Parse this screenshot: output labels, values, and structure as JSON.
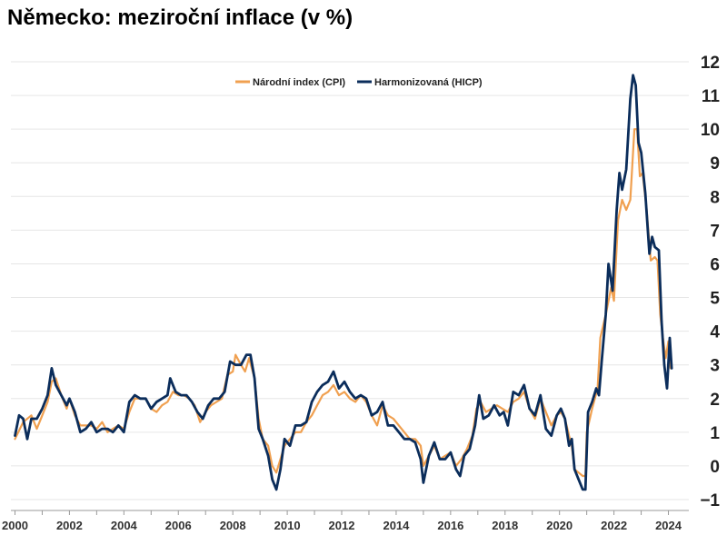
{
  "chart_data": {
    "type": "line",
    "title": "Německo: meziroční inflace (v %)",
    "xlabel": "",
    "ylabel": "",
    "xlim": [
      1999.85,
      2024.75
    ],
    "ylim": [
      -1,
      12
    ],
    "yticks": [
      -1,
      0,
      1,
      2,
      3,
      4,
      5,
      6,
      7,
      8,
      9,
      10,
      11,
      12
    ],
    "xticks": [
      "2000",
      "2002",
      "2004",
      "2006",
      "2008",
      "2010",
      "2012",
      "2014",
      "2016",
      "2018",
      "2020",
      "2022",
      "2024"
    ],
    "grid": true,
    "legend_position": "top-center",
    "colors": {
      "cpi": "#f0a050",
      "hicp": "#0b2d5b"
    },
    "series": [
      {
        "name": "Národní index (CPI)",
        "points": [
          [
            2000.0,
            0.8
          ],
          [
            2000.3,
            1.3
          ],
          [
            2000.6,
            1.5
          ],
          [
            2000.8,
            1.1
          ],
          [
            2001.0,
            1.5
          ],
          [
            2001.2,
            1.9
          ],
          [
            2001.35,
            2.5
          ],
          [
            2001.5,
            2.6
          ],
          [
            2001.7,
            2.1
          ],
          [
            2001.9,
            1.7
          ],
          [
            2002.0,
            2.0
          ],
          [
            2002.2,
            1.5
          ],
          [
            2002.4,
            1.2
          ],
          [
            2002.6,
            1.2
          ],
          [
            2002.8,
            1.2
          ],
          [
            2003.0,
            1.1
          ],
          [
            2003.2,
            1.3
          ],
          [
            2003.4,
            1.0
          ],
          [
            2003.6,
            1.1
          ],
          [
            2003.8,
            1.2
          ],
          [
            2004.0,
            1.1
          ],
          [
            2004.2,
            1.6
          ],
          [
            2004.4,
            2.0
          ],
          [
            2004.6,
            2.0
          ],
          [
            2004.8,
            2.0
          ],
          [
            2005.0,
            1.7
          ],
          [
            2005.2,
            1.6
          ],
          [
            2005.4,
            1.8
          ],
          [
            2005.6,
            1.9
          ],
          [
            2005.8,
            2.2
          ],
          [
            2006.0,
            2.1
          ],
          [
            2006.2,
            2.1
          ],
          [
            2006.4,
            2.0
          ],
          [
            2006.6,
            1.8
          ],
          [
            2006.8,
            1.3
          ],
          [
            2007.0,
            1.6
          ],
          [
            2007.2,
            1.8
          ],
          [
            2007.4,
            1.9
          ],
          [
            2007.6,
            2.0
          ],
          [
            2007.8,
            2.7
          ],
          [
            2008.0,
            2.8
          ],
          [
            2008.1,
            3.3
          ],
          [
            2008.3,
            3.0
          ],
          [
            2008.45,
            2.8
          ],
          [
            2008.6,
            3.2
          ],
          [
            2008.8,
            2.6
          ],
          [
            2008.95,
            1.4
          ],
          [
            2009.1,
            0.8
          ],
          [
            2009.3,
            0.6
          ],
          [
            2009.45,
            0.0
          ],
          [
            2009.6,
            -0.2
          ],
          [
            2009.75,
            0.2
          ],
          [
            2009.9,
            0.6
          ],
          [
            2010.1,
            0.8
          ],
          [
            2010.3,
            1.0
          ],
          [
            2010.5,
            1.0
          ],
          [
            2010.7,
            1.3
          ],
          [
            2010.9,
            1.5
          ],
          [
            2011.1,
            1.8
          ],
          [
            2011.3,
            2.1
          ],
          [
            2011.5,
            2.2
          ],
          [
            2011.7,
            2.4
          ],
          [
            2011.9,
            2.1
          ],
          [
            2012.1,
            2.2
          ],
          [
            2012.3,
            2.0
          ],
          [
            2012.5,
            1.9
          ],
          [
            2012.7,
            2.1
          ],
          [
            2012.9,
            1.9
          ],
          [
            2013.1,
            1.5
          ],
          [
            2013.3,
            1.2
          ],
          [
            2013.5,
            1.8
          ],
          [
            2013.7,
            1.5
          ],
          [
            2013.9,
            1.4
          ],
          [
            2014.1,
            1.2
          ],
          [
            2014.3,
            1.0
          ],
          [
            2014.5,
            0.8
          ],
          [
            2014.7,
            0.8
          ],
          [
            2014.9,
            0.6
          ],
          [
            2015.0,
            0.0
          ],
          [
            2015.2,
            0.3
          ],
          [
            2015.4,
            0.6
          ],
          [
            2015.6,
            0.2
          ],
          [
            2015.8,
            0.3
          ],
          [
            2016.0,
            0.4
          ],
          [
            2016.2,
            0.0
          ],
          [
            2016.4,
            0.2
          ],
          [
            2016.6,
            0.5
          ],
          [
            2016.8,
            0.9
          ],
          [
            2016.95,
            1.7
          ],
          [
            2017.1,
            1.9
          ],
          [
            2017.3,
            1.6
          ],
          [
            2017.5,
            1.7
          ],
          [
            2017.7,
            1.8
          ],
          [
            2017.9,
            1.7
          ],
          [
            2018.1,
            1.6
          ],
          [
            2018.3,
            1.9
          ],
          [
            2018.5,
            2.0
          ],
          [
            2018.7,
            2.2
          ],
          [
            2018.9,
            1.7
          ],
          [
            2019.1,
            1.4
          ],
          [
            2019.3,
            2.0
          ],
          [
            2019.5,
            1.6
          ],
          [
            2019.7,
            1.2
          ],
          [
            2019.9,
            1.5
          ],
          [
            2020.05,
            1.6
          ],
          [
            2020.2,
            1.4
          ],
          [
            2020.35,
            0.9
          ],
          [
            2020.45,
            0.6
          ],
          [
            2020.55,
            -0.1
          ],
          [
            2020.7,
            -0.2
          ],
          [
            2020.85,
            -0.3
          ],
          [
            2020.95,
            -0.3
          ],
          [
            2021.0,
            1.0
          ],
          [
            2021.2,
            1.7
          ],
          [
            2021.4,
            2.3
          ],
          [
            2021.5,
            3.8
          ],
          [
            2021.7,
            4.5
          ],
          [
            2021.9,
            5.3
          ],
          [
            2022.0,
            4.9
          ],
          [
            2022.15,
            7.3
          ],
          [
            2022.3,
            7.9
          ],
          [
            2022.45,
            7.6
          ],
          [
            2022.6,
            7.9
          ],
          [
            2022.75,
            10.0
          ],
          [
            2022.85,
            10.0
          ],
          [
            2022.95,
            8.6
          ],
          [
            2023.05,
            8.7
          ],
          [
            2023.2,
            7.6
          ],
          [
            2023.35,
            6.1
          ],
          [
            2023.5,
            6.2
          ],
          [
            2023.6,
            6.1
          ],
          [
            2023.7,
            4.5
          ],
          [
            2023.8,
            3.8
          ],
          [
            2023.9,
            3.2
          ],
          [
            2024.0,
            3.7
          ],
          [
            2024.08,
            2.9
          ]
        ]
      },
      {
        "name": "Harmonizovaná (HICP)",
        "points": [
          [
            2000.0,
            0.9
          ],
          [
            2000.15,
            1.5
          ],
          [
            2000.3,
            1.4
          ],
          [
            2000.45,
            0.8
          ],
          [
            2000.6,
            1.4
          ],
          [
            2000.8,
            1.4
          ],
          [
            2001.0,
            1.7
          ],
          [
            2001.2,
            2.1
          ],
          [
            2001.35,
            2.9
          ],
          [
            2001.5,
            2.4
          ],
          [
            2001.7,
            2.1
          ],
          [
            2001.9,
            1.8
          ],
          [
            2002.0,
            2.0
          ],
          [
            2002.2,
            1.6
          ],
          [
            2002.4,
            1.0
          ],
          [
            2002.6,
            1.1
          ],
          [
            2002.8,
            1.3
          ],
          [
            2003.0,
            1.0
          ],
          [
            2003.2,
            1.1
          ],
          [
            2003.4,
            1.1
          ],
          [
            2003.6,
            1.0
          ],
          [
            2003.8,
            1.2
          ],
          [
            2004.0,
            1.0
          ],
          [
            2004.2,
            1.9
          ],
          [
            2004.4,
            2.1
          ],
          [
            2004.6,
            2.0
          ],
          [
            2004.8,
            2.0
          ],
          [
            2005.0,
            1.7
          ],
          [
            2005.2,
            1.9
          ],
          [
            2005.4,
            2.0
          ],
          [
            2005.6,
            2.1
          ],
          [
            2005.7,
            2.6
          ],
          [
            2005.9,
            2.2
          ],
          [
            2006.1,
            2.1
          ],
          [
            2006.3,
            2.1
          ],
          [
            2006.5,
            1.9
          ],
          [
            2006.7,
            1.6
          ],
          [
            2006.9,
            1.4
          ],
          [
            2007.1,
            1.8
          ],
          [
            2007.3,
            2.0
          ],
          [
            2007.5,
            2.0
          ],
          [
            2007.7,
            2.2
          ],
          [
            2007.9,
            3.1
          ],
          [
            2008.1,
            3.0
          ],
          [
            2008.3,
            3.0
          ],
          [
            2008.5,
            3.3
          ],
          [
            2008.65,
            3.3
          ],
          [
            2008.8,
            2.6
          ],
          [
            2008.95,
            1.1
          ],
          [
            2009.1,
            0.8
          ],
          [
            2009.3,
            0.3
          ],
          [
            2009.45,
            -0.4
          ],
          [
            2009.6,
            -0.7
          ],
          [
            2009.75,
            -0.1
          ],
          [
            2009.9,
            0.8
          ],
          [
            2010.1,
            0.6
          ],
          [
            2010.3,
            1.2
          ],
          [
            2010.5,
            1.2
          ],
          [
            2010.7,
            1.3
          ],
          [
            2010.9,
            1.9
          ],
          [
            2011.1,
            2.2
          ],
          [
            2011.3,
            2.4
          ],
          [
            2011.5,
            2.5
          ],
          [
            2011.7,
            2.8
          ],
          [
            2011.9,
            2.3
          ],
          [
            2012.1,
            2.5
          ],
          [
            2012.3,
            2.2
          ],
          [
            2012.5,
            2.0
          ],
          [
            2012.7,
            2.1
          ],
          [
            2012.9,
            2.0
          ],
          [
            2013.1,
            1.5
          ],
          [
            2013.3,
            1.6
          ],
          [
            2013.5,
            1.9
          ],
          [
            2013.7,
            1.2
          ],
          [
            2013.9,
            1.2
          ],
          [
            2014.1,
            1.0
          ],
          [
            2014.3,
            0.8
          ],
          [
            2014.5,
            0.8
          ],
          [
            2014.7,
            0.7
          ],
          [
            2014.9,
            0.2
          ],
          [
            2015.0,
            -0.5
          ],
          [
            2015.2,
            0.3
          ],
          [
            2015.4,
            0.7
          ],
          [
            2015.6,
            0.2
          ],
          [
            2015.8,
            0.2
          ],
          [
            2016.0,
            0.4
          ],
          [
            2016.2,
            -0.1
          ],
          [
            2016.35,
            -0.3
          ],
          [
            2016.5,
            0.3
          ],
          [
            2016.7,
            0.5
          ],
          [
            2016.9,
            1.2
          ],
          [
            2017.05,
            2.1
          ],
          [
            2017.2,
            1.4
          ],
          [
            2017.4,
            1.5
          ],
          [
            2017.6,
            1.8
          ],
          [
            2017.8,
            1.5
          ],
          [
            2017.95,
            1.6
          ],
          [
            2018.1,
            1.2
          ],
          [
            2018.3,
            2.2
          ],
          [
            2018.5,
            2.1
          ],
          [
            2018.7,
            2.4
          ],
          [
            2018.9,
            1.7
          ],
          [
            2019.1,
            1.5
          ],
          [
            2019.3,
            2.1
          ],
          [
            2019.5,
            1.1
          ],
          [
            2019.7,
            0.9
          ],
          [
            2019.9,
            1.5
          ],
          [
            2020.05,
            1.7
          ],
          [
            2020.2,
            1.4
          ],
          [
            2020.35,
            0.6
          ],
          [
            2020.45,
            0.8
          ],
          [
            2020.55,
            -0.1
          ],
          [
            2020.7,
            -0.4
          ],
          [
            2020.85,
            -0.7
          ],
          [
            2020.95,
            -0.7
          ],
          [
            2021.05,
            1.6
          ],
          [
            2021.2,
            1.9
          ],
          [
            2021.35,
            2.3
          ],
          [
            2021.45,
            2.1
          ],
          [
            2021.55,
            3.1
          ],
          [
            2021.7,
            4.5
          ],
          [
            2021.8,
            6.0
          ],
          [
            2021.95,
            5.2
          ],
          [
            2022.1,
            7.6
          ],
          [
            2022.2,
            8.7
          ],
          [
            2022.3,
            8.2
          ],
          [
            2022.45,
            8.8
          ],
          [
            2022.6,
            10.9
          ],
          [
            2022.7,
            11.6
          ],
          [
            2022.8,
            11.3
          ],
          [
            2022.9,
            9.6
          ],
          [
            2023.0,
            9.3
          ],
          [
            2023.15,
            8.1
          ],
          [
            2023.3,
            6.3
          ],
          [
            2023.4,
            6.8
          ],
          [
            2023.5,
            6.5
          ],
          [
            2023.65,
            6.4
          ],
          [
            2023.75,
            4.3
          ],
          [
            2023.85,
            3.0
          ],
          [
            2023.95,
            2.3
          ],
          [
            2024.05,
            3.8
          ],
          [
            2024.12,
            2.9
          ]
        ]
      }
    ]
  }
}
